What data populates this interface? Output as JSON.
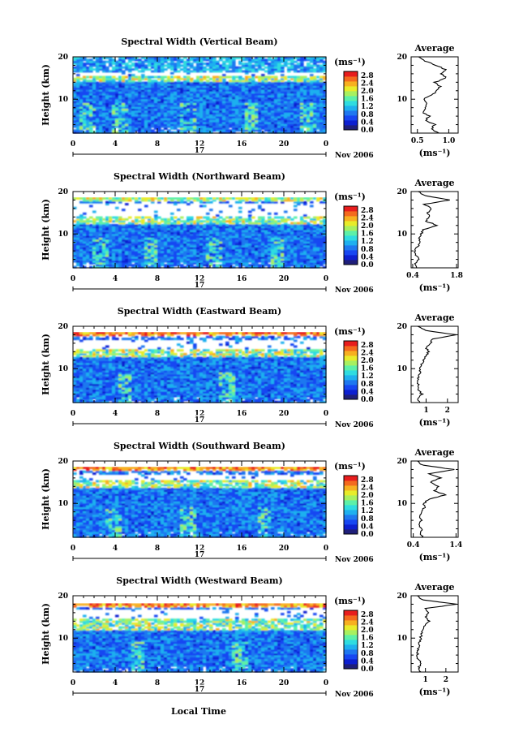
{
  "figure": {
    "xlabel": "Local Time",
    "date_day": "17",
    "date_month": "Nov 2006",
    "unit_label": "(ms⁻¹)",
    "average_title": "Average",
    "ylabel": "Height (km)",
    "colorbar_ticks": [
      "0.0",
      "0.4",
      "0.8",
      "1.2",
      "1.6",
      "2.0",
      "2.4",
      "2.8"
    ],
    "colorscale": [
      "#1f1f7a",
      "#0d1fd0",
      "#1747f2",
      "#1f78f0",
      "#1fb0ef",
      "#2fdce0",
      "#5df0a8",
      "#a8f060",
      "#e8ec2a",
      "#f7b020",
      "#f46a1e",
      "#e81d1d"
    ]
  },
  "chart_data": [
    {
      "type": "heatmap",
      "title": "Spectral Width (Vertical Beam)",
      "xlabel": "Local Time",
      "ylabel": "Height (km)",
      "x_ticks": [
        "0",
        "4",
        "8",
        "12",
        "16",
        "20",
        "0"
      ],
      "xlim": [
        0,
        24
      ],
      "y_ticks": [
        "20",
        "10"
      ],
      "ylim": [
        2,
        20
      ],
      "colorbar_range": [
        0.0,
        3.0
      ],
      "profile": {
        "title": "Average",
        "xlabel": "(ms⁻¹)",
        "x_ticks": [
          "0.5",
          "1.0"
        ],
        "xlim": [
          0.4,
          1.15
        ],
        "y_ticks": [
          "20",
          "10"
        ],
        "ylim": [
          2,
          20
        ],
        "height_km": [
          2,
          3,
          4,
          5,
          6,
          7,
          8,
          9,
          10,
          11,
          12,
          13,
          14,
          15,
          16,
          17,
          18,
          19,
          20
        ],
        "width_ms": [
          0.85,
          0.72,
          0.78,
          0.62,
          0.7,
          0.58,
          0.62,
          0.66,
          0.6,
          0.74,
          0.8,
          0.86,
          0.78,
          0.96,
          0.88,
          0.94,
          0.8,
          0.62,
          0.52
        ]
      }
    },
    {
      "type": "heatmap",
      "title": "Spectral Width (Northward Beam)",
      "xlabel": "Local Time",
      "ylabel": "Height (km)",
      "x_ticks": [
        "0",
        "4",
        "8",
        "12",
        "16",
        "20",
        "0"
      ],
      "xlim": [
        0,
        24
      ],
      "y_ticks": [
        "20",
        "10"
      ],
      "ylim": [
        2,
        20
      ],
      "colorbar_range": [
        0.0,
        3.0
      ],
      "profile": {
        "title": "Average",
        "xlabel": "(ms⁻¹)",
        "x_ticks": [
          "0.4",
          "1.8"
        ],
        "xlim": [
          0.35,
          1.85
        ],
        "y_ticks": [
          "20",
          "10"
        ],
        "ylim": [
          2,
          20
        ],
        "height_km": [
          2,
          3,
          4,
          5,
          6,
          7,
          8,
          9,
          10,
          11,
          12,
          13,
          14,
          15,
          16,
          17,
          18,
          19,
          20
        ],
        "width_ms": [
          0.55,
          0.5,
          0.58,
          0.52,
          0.48,
          0.56,
          0.6,
          0.62,
          0.68,
          0.74,
          1.2,
          0.82,
          0.94,
          0.88,
          1.0,
          0.76,
          1.6,
          0.8,
          0.58
        ]
      }
    },
    {
      "type": "heatmap",
      "title": "Spectral Width (Eastward Beam)",
      "xlabel": "Local Time",
      "ylabel": "Height (km)",
      "x_ticks": [
        "0",
        "4",
        "8",
        "12",
        "16",
        "20",
        "0"
      ],
      "xlim": [
        0,
        24
      ],
      "y_ticks": [
        "20",
        "10"
      ],
      "ylim": [
        2,
        20
      ],
      "colorbar_range": [
        0.0,
        3.0
      ],
      "profile": {
        "title": "Average",
        "xlabel": "(ms⁻¹)",
        "x_ticks": [
          "1",
          "2"
        ],
        "xlim": [
          0.3,
          2.5
        ],
        "y_ticks": [
          "20",
          "10"
        ],
        "ylim": [
          2,
          20
        ],
        "height_km": [
          2,
          3,
          4,
          5,
          6,
          7,
          8,
          9,
          10,
          11,
          12,
          13,
          14,
          15,
          16,
          17,
          18,
          19,
          20
        ],
        "width_ms": [
          0.7,
          0.62,
          0.8,
          0.64,
          0.66,
          0.6,
          0.62,
          0.7,
          0.74,
          0.8,
          0.9,
          1.0,
          1.1,
          1.0,
          1.2,
          1.3,
          2.4,
          1.0,
          0.6
        ]
      }
    },
    {
      "type": "heatmap",
      "title": "Spectral Width (Southward Beam)",
      "xlabel": "Local Time",
      "ylabel": "Height (km)",
      "x_ticks": [
        "0",
        "4",
        "8",
        "12",
        "16",
        "20",
        "0"
      ],
      "xlim": [
        0,
        24
      ],
      "y_ticks": [
        "20",
        "10"
      ],
      "ylim": [
        2,
        20
      ],
      "colorbar_range": [
        0.0,
        3.0
      ],
      "profile": {
        "title": "Average",
        "xlabel": "(ms⁻¹)",
        "x_ticks": [
          "0.4",
          "1.4"
        ],
        "xlim": [
          0.35,
          1.45
        ],
        "y_ticks": [
          "20",
          "10"
        ],
        "ylim": [
          2,
          20
        ],
        "height_km": [
          2,
          3,
          4,
          5,
          6,
          7,
          8,
          9,
          10,
          11,
          12,
          13,
          14,
          15,
          16,
          17,
          18,
          19,
          20
        ],
        "width_ms": [
          0.62,
          0.55,
          0.6,
          0.52,
          0.58,
          0.54,
          0.6,
          0.66,
          0.64,
          0.78,
          1.15,
          0.9,
          1.0,
          0.8,
          1.05,
          0.78,
          1.35,
          0.62,
          0.5
        ]
      }
    },
    {
      "type": "heatmap",
      "title": "Spectral Width (Westward Beam)",
      "xlabel": "Local Time",
      "ylabel": "Height (km)",
      "x_ticks": [
        "0",
        "4",
        "8",
        "12",
        "16",
        "20",
        "0"
      ],
      "xlim": [
        0,
        24
      ],
      "y_ticks": [
        "20",
        "10"
      ],
      "ylim": [
        2,
        20
      ],
      "colorbar_range": [
        0.0,
        3.0
      ],
      "profile": {
        "title": "Average",
        "xlabel": "(ms⁻¹)",
        "x_ticks": [
          "1",
          "2"
        ],
        "xlim": [
          0.3,
          2.6
        ],
        "y_ticks": [
          "20",
          "10"
        ],
        "ylim": [
          2,
          20
        ],
        "height_km": [
          2,
          3,
          4,
          5,
          6,
          7,
          8,
          9,
          10,
          11,
          12,
          13,
          14,
          15,
          16,
          17,
          18,
          19,
          20
        ],
        "width_ms": [
          0.74,
          0.66,
          0.8,
          0.64,
          0.62,
          0.6,
          0.66,
          0.72,
          0.76,
          0.82,
          0.9,
          1.0,
          1.2,
          1.0,
          1.1,
          1.0,
          2.5,
          0.9,
          0.6
        ]
      }
    }
  ]
}
